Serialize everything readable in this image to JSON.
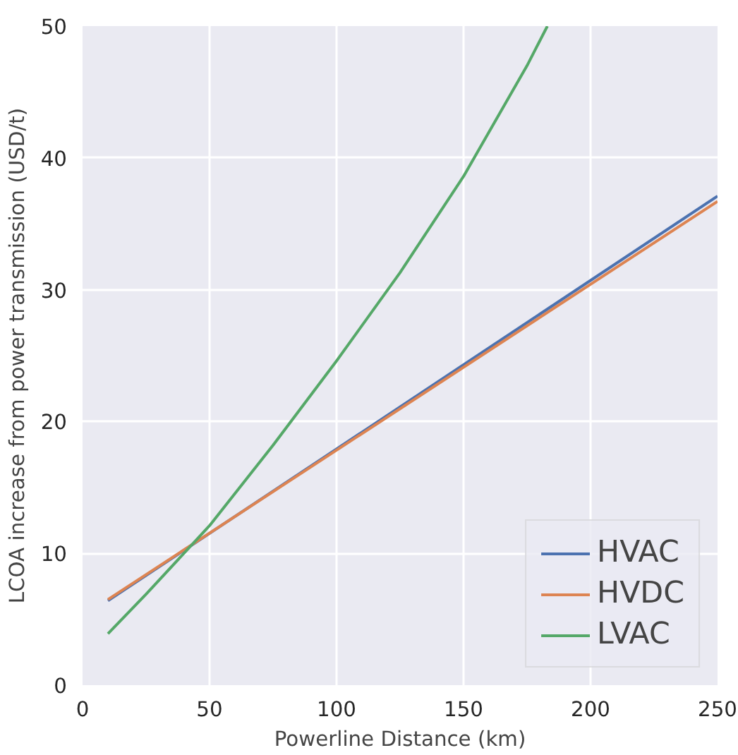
{
  "chart_data": {
    "type": "line",
    "xlabel": "Powerline Distance (km)",
    "ylabel": "LCOA increase from power transmission (USD/t)",
    "xlim": [
      0,
      250
    ],
    "ylim": [
      0,
      50
    ],
    "xticks": [
      0,
      50,
      100,
      150,
      200,
      250
    ],
    "yticks": [
      0,
      10,
      20,
      30,
      40,
      50
    ],
    "grid": true,
    "legend": "bottom right",
    "line_style": "solid",
    "series": [
      {
        "name": "HVAC",
        "color": "#4c72b0",
        "x": [
          10,
          250
        ],
        "values": [
          6.4,
          37.1
        ]
      },
      {
        "name": "HVDC",
        "color": "#dd8452",
        "x": [
          10,
          250
        ],
        "values": [
          6.5,
          36.7
        ]
      },
      {
        "name": "LVAC",
        "color": "#55a868",
        "x": [
          10,
          25,
          50,
          75,
          100,
          125,
          150,
          175,
          183
        ],
        "values": [
          3.9,
          6.9,
          12.1,
          18.2,
          24.6,
          31.3,
          38.6,
          47.0,
          50.0
        ]
      }
    ]
  }
}
